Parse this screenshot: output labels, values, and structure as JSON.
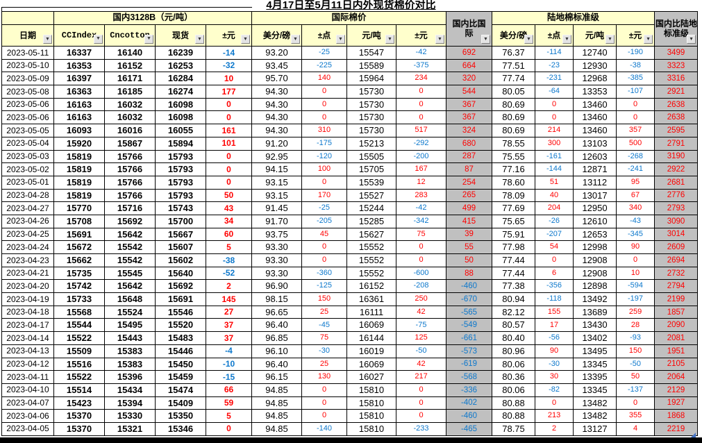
{
  "title": "4月17日至5月11日内外现货棉价对比",
  "icons": {
    "filter_dropdown": "▼"
  },
  "colors": {
    "header_bg": "#ffffcc",
    "compare_bg": "#c0c0c0",
    "positive": "#ff0000",
    "negative": "#0d78cc"
  },
  "table": {
    "groups": {
      "domestic": "国内3128B（元/吨）",
      "international": "国际棉价",
      "upland": "陆地棉标准级",
      "domestic_vs_international": "国内比国际",
      "domestic_vs_upland": "国内比陆地标准级"
    },
    "columns": {
      "date": "日期",
      "ccindex": "CCIndex",
      "cncotton": "Cncotton",
      "spot": "现货",
      "delta_yuan": "±元",
      "cents": "美分/磅",
      "points": "±点",
      "yuan": "元/吨"
    },
    "rows": [
      [
        "2023-05-11",
        "16337",
        "16140",
        "16239",
        "-14",
        "93.20",
        "-25",
        "15547",
        "-42",
        "692",
        "76.37",
        "-114",
        "12740",
        "-190",
        "3499"
      ],
      [
        "2023-05-10",
        "16353",
        "16152",
        "16253",
        "-32",
        "93.45",
        "-225",
        "15589",
        "-375",
        "664",
        "77.51",
        "-23",
        "12930",
        "-38",
        "3323"
      ],
      [
        "2023-05-09",
        "16397",
        "16171",
        "16284",
        "10",
        "95.70",
        "140",
        "15964",
        "234",
        "320",
        "77.74",
        "-231",
        "12968",
        "-385",
        "3316"
      ],
      [
        "2023-05-08",
        "16363",
        "16185",
        "16274",
        "177",
        "94.30",
        "0",
        "15730",
        "0",
        "544",
        "80.05",
        "-64",
        "13353",
        "-107",
        "2921"
      ],
      [
        "2023-05-06",
        "16163",
        "16032",
        "16098",
        "0",
        "94.30",
        "0",
        "15730",
        "0",
        "367",
        "80.69",
        "0",
        "13460",
        "0",
        "2638"
      ],
      [
        "2023-05-06",
        "16163",
        "16032",
        "16098",
        "0",
        "94.30",
        "0",
        "15730",
        "0",
        "367",
        "80.69",
        "0",
        "13460",
        "0",
        "2638"
      ],
      [
        "2023-05-05",
        "16093",
        "16016",
        "16055",
        "161",
        "94.30",
        "310",
        "15730",
        "517",
        "324",
        "80.69",
        "214",
        "13460",
        "357",
        "2595"
      ],
      [
        "2023-05-04",
        "15920",
        "15867",
        "15894",
        "101",
        "91.20",
        "-175",
        "15213",
        "-292",
        "680",
        "78.55",
        "300",
        "13103",
        "500",
        "2791"
      ],
      [
        "2023-05-03",
        "15819",
        "15766",
        "15793",
        "0",
        "92.95",
        "-120",
        "15505",
        "-200",
        "287",
        "75.55",
        "-161",
        "12603",
        "-268",
        "3190"
      ],
      [
        "2023-05-02",
        "15819",
        "15766",
        "15793",
        "0",
        "94.15",
        "100",
        "15705",
        "167",
        "87",
        "77.16",
        "-144",
        "12871",
        "-241",
        "2922"
      ],
      [
        "2023-05-01",
        "15819",
        "15766",
        "15793",
        "0",
        "93.15",
        "0",
        "15539",
        "12",
        "254",
        "78.60",
        "51",
        "13112",
        "95",
        "2681"
      ],
      [
        "2023-04-28",
        "15819",
        "15766",
        "15793",
        "50",
        "93.15",
        "170",
        "15527",
        "283",
        "265",
        "78.09",
        "40",
        "13017",
        "67",
        "2776"
      ],
      [
        "2023-04-27",
        "15770",
        "15716",
        "15743",
        "43",
        "91.45",
        "-25",
        "15244",
        "-42",
        "499",
        "77.69",
        "204",
        "12950",
        "340",
        "2793"
      ],
      [
        "2023-04-26",
        "15708",
        "15692",
        "15700",
        "34",
        "91.70",
        "-205",
        "15285",
        "-342",
        "415",
        "75.65",
        "-26",
        "12610",
        "-43",
        "3090"
      ],
      [
        "2023-04-25",
        "15691",
        "15642",
        "15667",
        "60",
        "93.75",
        "45",
        "15627",
        "75",
        "39",
        "75.91",
        "-207",
        "12653",
        "-345",
        "3014"
      ],
      [
        "2023-04-24",
        "15672",
        "15542",
        "15607",
        "5",
        "93.30",
        "0",
        "15552",
        "0",
        "55",
        "77.98",
        "54",
        "12998",
        "90",
        "2609"
      ],
      [
        "2023-04-23",
        "15662",
        "15542",
        "15602",
        "-38",
        "93.30",
        "0",
        "15552",
        "0",
        "50",
        "77.44",
        "0",
        "12908",
        "0",
        "2694"
      ],
      [
        "2023-04-21",
        "15735",
        "15545",
        "15640",
        "-52",
        "93.30",
        "-360",
        "15552",
        "-600",
        "88",
        "77.44",
        "6",
        "12908",
        "10",
        "2732"
      ],
      [
        "2023-04-20",
        "15742",
        "15642",
        "15692",
        "2",
        "96.90",
        "-125",
        "16152",
        "-208",
        "-460",
        "77.38",
        "-356",
        "12898",
        "-594",
        "2794"
      ],
      [
        "2023-04-19",
        "15733",
        "15648",
        "15691",
        "145",
        "98.15",
        "150",
        "16361",
        "250",
        "-670",
        "80.94",
        "-118",
        "13492",
        "-197",
        "2199"
      ],
      [
        "2023-04-18",
        "15568",
        "15524",
        "15546",
        "27",
        "96.65",
        "25",
        "16111",
        "42",
        "-565",
        "82.12",
        "155",
        "13689",
        "259",
        "1857"
      ],
      [
        "2023-04-17",
        "15544",
        "15495",
        "15520",
        "37",
        "96.40",
        "-45",
        "16069",
        "-75",
        "-549",
        "80.57",
        "17",
        "13430",
        "28",
        "2090"
      ],
      [
        "2023-04-14",
        "15522",
        "15443",
        "15483",
        "37",
        "96.85",
        "75",
        "16144",
        "125",
        "-661",
        "80.40",
        "-56",
        "13402",
        "-93",
        "2081"
      ],
      [
        "2023-04-13",
        "15509",
        "15383",
        "15446",
        "-4",
        "96.10",
        "-30",
        "16019",
        "-50",
        "-573",
        "80.96",
        "90",
        "13495",
        "150",
        "1951"
      ],
      [
        "2023-04-12",
        "15516",
        "15383",
        "15450",
        "-10",
        "96.40",
        "25",
        "16069",
        "42",
        "-619",
        "80.06",
        "-30",
        "13345",
        "-50",
        "2105"
      ],
      [
        "2023-04-11",
        "15522",
        "15396",
        "15459",
        "-15",
        "96.15",
        "130",
        "16027",
        "217",
        "-568",
        "80.36",
        "30",
        "13395",
        "50",
        "2064"
      ],
      [
        "2023-04-10",
        "15514",
        "15434",
        "15474",
        "66",
        "94.85",
        "0",
        "15810",
        "0",
        "-336",
        "80.06",
        "-82",
        "13345",
        "-137",
        "2129"
      ],
      [
        "2023-04-07",
        "15423",
        "15394",
        "15409",
        "59",
        "94.85",
        "0",
        "15810",
        "0",
        "-402",
        "80.88",
        "0",
        "13482",
        "0",
        "1927"
      ],
      [
        "2023-04-06",
        "15370",
        "15330",
        "15350",
        "5",
        "94.85",
        "0",
        "15810",
        "0",
        "-460",
        "80.88",
        "213",
        "13482",
        "355",
        "1868"
      ],
      [
        "2023-04-05",
        "15370",
        "15321",
        "15346",
        "0",
        "94.85",
        "-140",
        "15810",
        "-233",
        "-465",
        "78.75",
        "2",
        "13127",
        "4",
        "2219"
      ]
    ]
  }
}
